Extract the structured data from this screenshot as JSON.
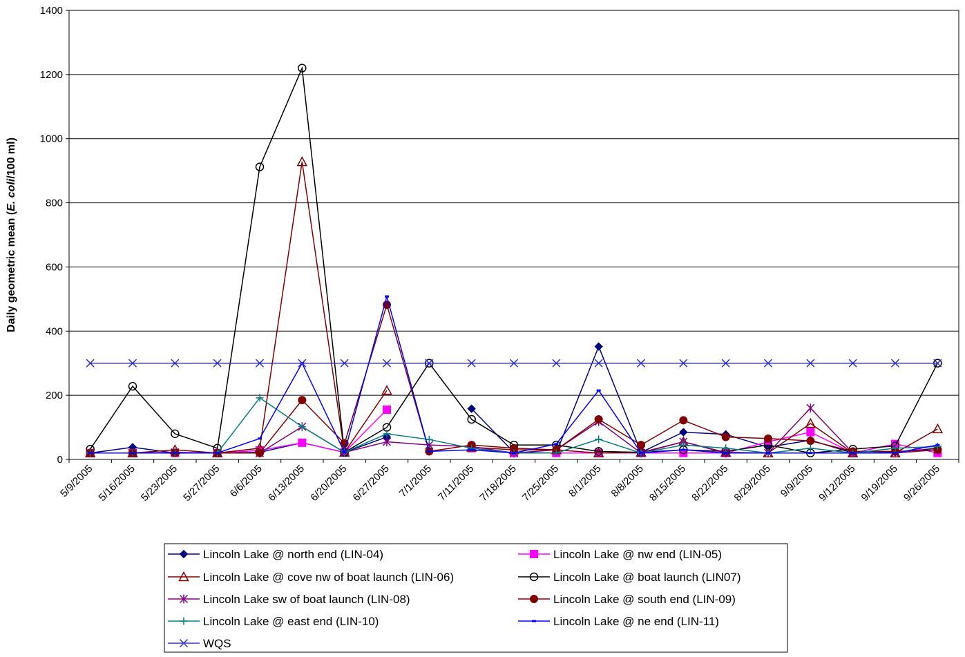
{
  "chart_data": {
    "type": "line",
    "ylabel_parts": [
      "Daily geometric mean (",
      "E. coli",
      "/100 ml)"
    ],
    "ylim": [
      0,
      1400
    ],
    "yticks": [
      0,
      200,
      400,
      600,
      800,
      1000,
      1200,
      1400
    ],
    "grid": "horizontal",
    "legend_position": "bottom",
    "categories": [
      "5/9/2005",
      "5/16/2005",
      "5/23/2005",
      "5/27/2005",
      "6/6/2005",
      "6/13/2005",
      "6/20/2005",
      "6/27/2005",
      "7/1/2005",
      "7/11/2005",
      "7/18/2005",
      "7/25/2005",
      "8/1/2005",
      "8/8/2005",
      "8/15/2005",
      "8/22/2005",
      "8/29/2005",
      "9/9/2005",
      "9/12/2005",
      "9/19/2005",
      "9/26/2005"
    ],
    "series": [
      {
        "name": "Lincoln Lake @ north end (LIN-04)",
        "color": "#000080",
        "marker": "diamond",
        "values": [
          20,
          38,
          20,
          20,
          22,
          52,
          22,
          70,
          null,
          158,
          22,
          20,
          352,
          22,
          85,
          78,
          38,
          60,
          20,
          22,
          35
        ]
      },
      {
        "name": "Lincoln Lake @ nw end (LIN-05)",
        "color": "#ff00ff",
        "marker": "square",
        "values": [
          20,
          20,
          20,
          20,
          28,
          52,
          22,
          155,
          null,
          35,
          20,
          20,
          20,
          20,
          20,
          20,
          55,
          85,
          20,
          48,
          20
        ]
      },
      {
        "name": "Lincoln Lake @ cove nw of boat launch (LIN-06)",
        "color": "#800000",
        "marker": "triangle",
        "values": [
          20,
          20,
          30,
          20,
          35,
          928,
          22,
          215,
          null,
          38,
          30,
          30,
          20,
          22,
          55,
          22,
          20,
          112,
          20,
          20,
          95
        ]
      },
      {
        "name": "Lincoln Lake @ boat launch (LIN07)",
        "color": "#000000",
        "marker": "circle",
        "values": [
          32,
          228,
          80,
          35,
          912,
          1220,
          22,
          100,
          300,
          125,
          45,
          45,
          25,
          22,
          30,
          25,
          45,
          20,
          32,
          42,
          300
        ]
      },
      {
        "name": "Lincoln Lake sw of boat launch (LIN-08)",
        "color": "#800080",
        "marker": "star",
        "values": [
          20,
          20,
          22,
          20,
          20,
          102,
          22,
          55,
          45,
          40,
          20,
          30,
          118,
          20,
          55,
          20,
          20,
          160,
          20,
          20,
          30
        ]
      },
      {
        "name": "Lincoln Lake @ south end (LIN-09)",
        "color": "#800000",
        "marker": "dot",
        "values": [
          20,
          20,
          20,
          20,
          20,
          185,
          50,
          482,
          25,
          45,
          35,
          30,
          125,
          45,
          122,
          70,
          65,
          58,
          25,
          25,
          30
        ]
      },
      {
        "name": "Lincoln Lake @ east end (LIN-10)",
        "color": "#008080",
        "marker": "plus",
        "values": [
          20,
          20,
          20,
          20,
          192,
          102,
          22,
          80,
          62,
          35,
          20,
          20,
          63,
          20,
          45,
          35,
          20,
          35,
          20,
          35,
          40
        ]
      },
      {
        "name": "Lincoln Lake @ ne end (LIN-11)",
        "color": "#0000ff",
        "marker": "dash",
        "values": [
          20,
          20,
          20,
          20,
          65,
          300,
          22,
          508,
          25,
          30,
          20,
          48,
          215,
          20,
          30,
          20,
          20,
          20,
          20,
          20,
          45
        ]
      },
      {
        "name": "WQS",
        "color": "#3333cc",
        "marker": "x",
        "values": [
          300,
          300,
          300,
          300,
          300,
          300,
          300,
          300,
          300,
          300,
          300,
          300,
          300,
          300,
          300,
          300,
          300,
          300,
          300,
          300,
          300
        ]
      }
    ]
  }
}
